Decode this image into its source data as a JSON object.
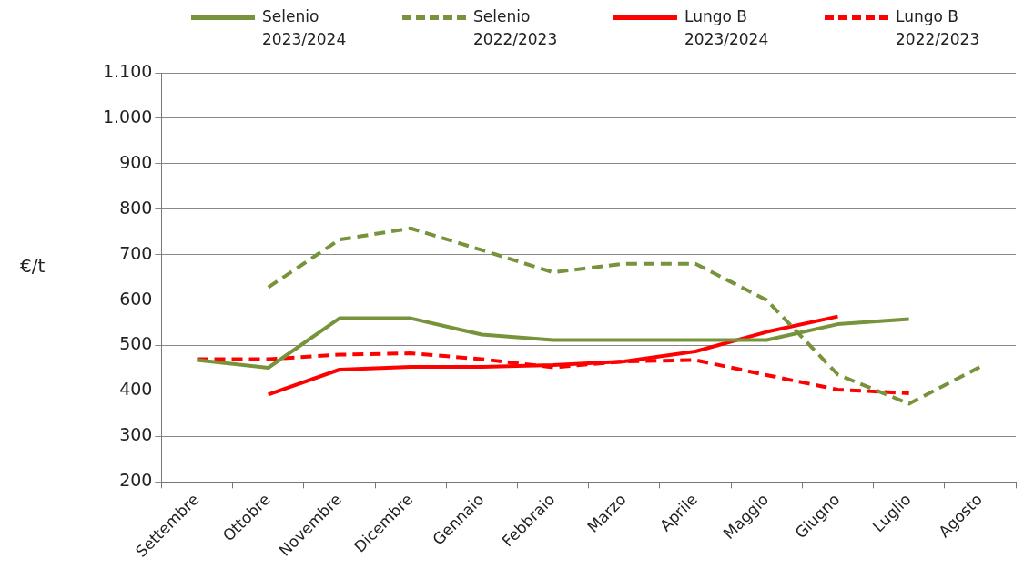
{
  "chart_data": {
    "type": "line",
    "ylabel": "€/t",
    "categories": [
      "Settembre",
      "Ottobre",
      "Novembre",
      "Dicembre",
      "Gennaio",
      "Febbraio",
      "Marzo",
      "Aprile",
      "Maggio",
      "Giugno",
      "Luglio",
      "Agosto"
    ],
    "series": [
      {
        "name": "Selenio 2023/2024",
        "color": "#77933c",
        "line_style": "solid",
        "values": [
          468,
          451,
          560,
          560,
          524,
          512,
          512,
          512,
          512,
          547,
          558,
          null
        ]
      },
      {
        "name": "Selenio 2022/2023",
        "color": "#77933c",
        "line_style": "dashed",
        "values": [
          null,
          628,
          733,
          758,
          710,
          661,
          680,
          680,
          600,
          436,
          372,
          453
        ]
      },
      {
        "name": "Lungo B 2023/2024",
        "color": "#ff0000",
        "line_style": "solid",
        "values": [
          null,
          392,
          447,
          453,
          453,
          457,
          465,
          487,
          530,
          564,
          null,
          null
        ]
      },
      {
        "name": "Lungo B 2022/2023",
        "color": "#ff0000",
        "line_style": "dashed",
        "values": [
          470,
          470,
          480,
          483,
          470,
          452,
          465,
          468,
          435,
          403,
          395,
          null
        ]
      }
    ],
    "ylim": [
      200,
      1100
    ],
    "yticks": [
      200,
      300,
      400,
      500,
      600,
      700,
      800,
      900,
      {
        "value": 1000,
        "label": "1.000"
      },
      {
        "value": 1100,
        "label": "1.100"
      }
    ],
    "grid": "y",
    "legend": "top",
    "marker": "none"
  }
}
